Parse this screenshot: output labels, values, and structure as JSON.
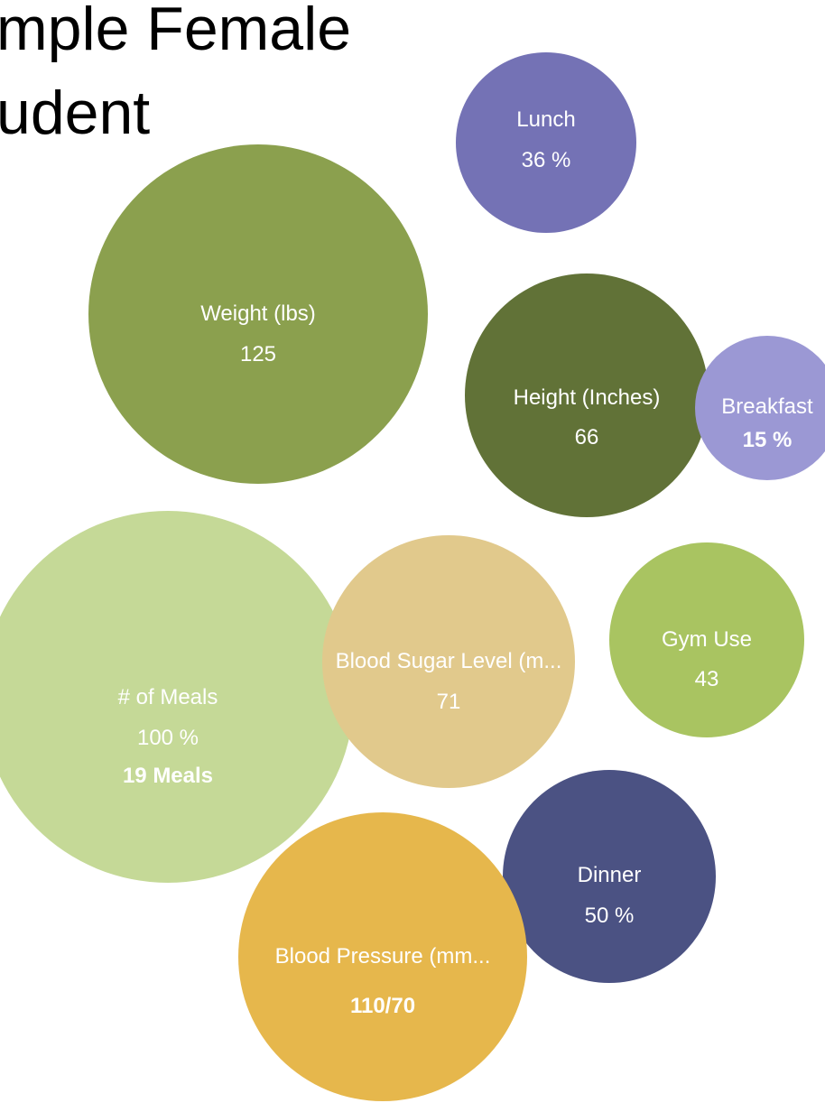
{
  "title_lines": [
    "mple Female",
    "udent"
  ],
  "chart_data": {
    "type": "bubble",
    "title": "mple Female udent",
    "legend": "none",
    "bubbles": [
      {
        "id": "weight",
        "label": "Weight (lbs)",
        "value_text": "125",
        "value": 125,
        "color": "#8ba04e"
      },
      {
        "id": "lunch",
        "label": "Lunch",
        "value_text": "36 %",
        "value": 36,
        "color": "#7472b5"
      },
      {
        "id": "height",
        "label": "Height (Inches)",
        "value_text": "66",
        "value": 66,
        "color": "#617237"
      },
      {
        "id": "breakfast",
        "label": "Breakfast",
        "value_text": "15 %",
        "value": 15,
        "color": "#9b98d4"
      },
      {
        "id": "meals",
        "label": "# of Meals",
        "value_text": "100 %",
        "extra_text": "19 Meals",
        "value": 100,
        "color": "#c5d997"
      },
      {
        "id": "blood-sugar",
        "label": "Blood Sugar Level (m...",
        "value_text": "71",
        "value": 71,
        "color": "#e1c98c"
      },
      {
        "id": "gym",
        "label": "Gym Use",
        "value_text": "43",
        "value": 43,
        "color": "#a9c461"
      },
      {
        "id": "dinner",
        "label": "Dinner",
        "value_text": "50 %",
        "value": 50,
        "color": "#4b5283"
      },
      {
        "id": "blood-pressure",
        "label": "Blood Pressure (mm...",
        "value_text": "110/70",
        "value": 110,
        "color": "#e6b74c"
      }
    ]
  }
}
